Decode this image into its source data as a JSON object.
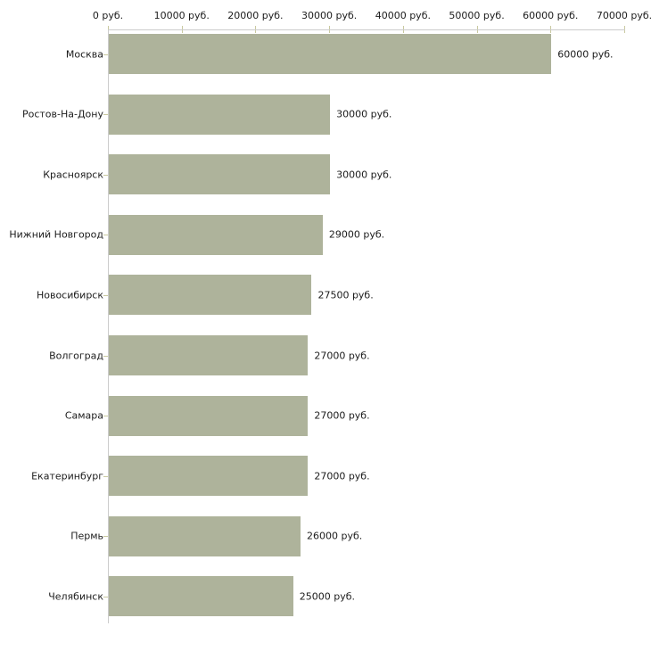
{
  "chart_data": {
    "type": "bar",
    "orientation": "horizontal",
    "title": "",
    "xlabel": "",
    "ylabel": "",
    "xlim": [
      0,
      70000
    ],
    "grid": false,
    "legend_position": "none",
    "x_tick_values": [
      0,
      10000,
      20000,
      30000,
      40000,
      50000,
      60000,
      70000
    ],
    "x_tick_labels": [
      "0 руб.",
      "10000 руб.",
      "20000 руб.",
      "30000 руб.",
      "40000 руб.",
      "50000 руб.",
      "60000 руб.",
      "70000 руб."
    ],
    "categories": [
      "Москва",
      "Ростов-На-Дону",
      "Красноярск",
      "Нижний Новгород",
      "Новосибирск",
      "Волгоград",
      "Самара",
      "Екатеринбург",
      "Пермь",
      "Челябинск"
    ],
    "values": [
      60000,
      30000,
      30000,
      29000,
      27500,
      27000,
      27000,
      27000,
      26000,
      25000
    ],
    "value_labels": [
      "60000 руб.",
      "30000 руб.",
      "30000 руб.",
      "29000 руб.",
      "27500 руб.",
      "27000 руб.",
      "27000 руб.",
      "27000 руб.",
      "26000 руб.",
      "25000 руб."
    ],
    "colors": {
      "bar": "#aeb39b",
      "axis": "#cccccc",
      "tick": "#c9c9a0",
      "text": "#1c1c1c",
      "background": "#ffffff"
    }
  }
}
